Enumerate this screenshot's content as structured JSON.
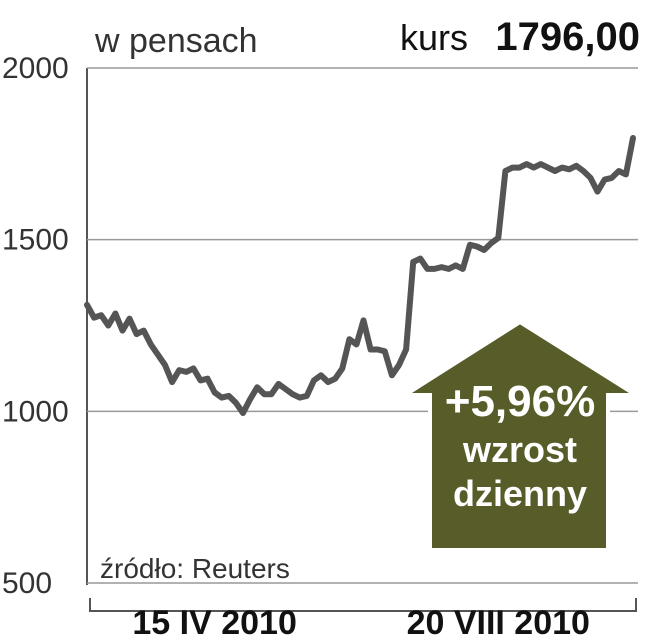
{
  "chart_data": {
    "type": "line",
    "title": "kurs",
    "current_price": "1796,00",
    "y_axis_label": "w pensach",
    "source": "źródło: Reuters",
    "annotation": {
      "change": "+5,96%",
      "line1": "wzrost",
      "line2": "dzienny"
    },
    "categories": [
      null,
      null,
      null,
      null,
      null,
      null,
      null,
      null,
      null,
      null,
      null,
      null,
      null,
      null,
      null,
      null,
      null,
      null,
      "15 IV 2010",
      null,
      null,
      null,
      null,
      null,
      null,
      null,
      null,
      null,
      null,
      null,
      null,
      null,
      null,
      null,
      null,
      null,
      null,
      null,
      null,
      null,
      null,
      null,
      null,
      null,
      null,
      null,
      null,
      null,
      null,
      null,
      null,
      null,
      null,
      null,
      null,
      null,
      null,
      null,
      "20 VIII 2010",
      null,
      null,
      null,
      null,
      null,
      null,
      null,
      null,
      null,
      null,
      null,
      null,
      null,
      null,
      null,
      null,
      null,
      null,
      null
    ],
    "series": [
      {
        "color": "#555555",
        "values": [
          1310,
          1273,
          1280,
          1250,
          1285,
          1235,
          1270,
          1225,
          1235,
          1195,
          1165,
          1135,
          1085,
          1120,
          1115,
          1125,
          1090,
          1095,
          1055,
          1040,
          1045,
          1025,
          995,
          1035,
          1070,
          1050,
          1050,
          1080,
          1065,
          1050,
          1040,
          1045,
          1090,
          1105,
          1085,
          1095,
          1125,
          1210,
          1195,
          1265,
          1180,
          1180,
          1175,
          1105,
          1135,
          1180,
          1435,
          1445,
          1415,
          1415,
          1420,
          1415,
          1425,
          1415,
          1485,
          1480,
          1470,
          1490,
          1505,
          1700,
          1710,
          1710,
          1720,
          1710,
          1720,
          1710,
          1700,
          1710,
          1705,
          1715,
          1700,
          1680,
          1640,
          1675,
          1680,
          1700,
          1690,
          1796
        ]
      }
    ],
    "ylim": [
      500,
      2000
    ],
    "yticks": [
      500,
      1000,
      1500,
      2000
    ],
    "grid": true
  }
}
